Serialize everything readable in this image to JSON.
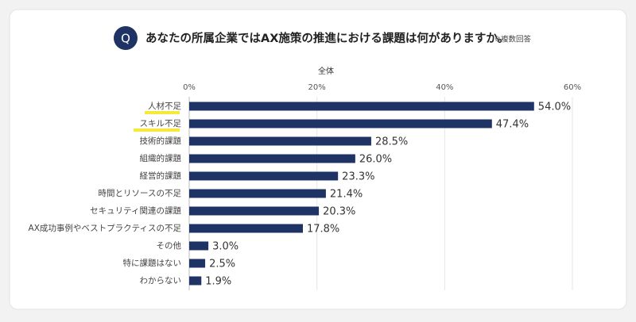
{
  "chart_data": {
    "type": "bar",
    "orientation": "horizontal",
    "badge": "Q",
    "title": "あなたの所属企業ではAX施策の推進における課題は何がありますか。",
    "note": "※複数回答",
    "categories": [
      "人材不足",
      "スキル不足",
      "技術的課題",
      "組織的課題",
      "経営的課題",
      "時間とリソースの不足",
      "セキュリティ関連の課題",
      "AX成功事例やベストプラクティスの不足",
      "その他",
      "特に課題はない",
      "わからない"
    ],
    "series": [
      {
        "name": "全体",
        "color": "#1f3464",
        "values": [
          54.0,
          47.4,
          28.5,
          26.0,
          23.3,
          21.4,
          20.3,
          17.8,
          3.0,
          2.5,
          1.9
        ],
        "value_labels": [
          "54.0%",
          "47.4%",
          "28.5%",
          "26.0%",
          "23.3%",
          "21.4%",
          "20.3%",
          "17.8%",
          "3.0%",
          "2.5%",
          "1.9%"
        ]
      }
    ],
    "xlim": [
      0,
      60
    ],
    "xticks": [
      {
        "value": 0,
        "label": "0%"
      },
      {
        "value": 20,
        "label": "20%"
      },
      {
        "value": 40,
        "label": "40%"
      },
      {
        "value": 60,
        "label": "60%"
      }
    ],
    "grid": true
  }
}
